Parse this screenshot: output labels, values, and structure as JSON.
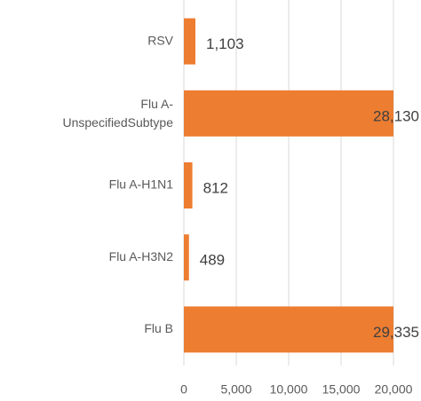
{
  "chart_data": {
    "type": "hbar",
    "categories": [
      "RSV",
      "Flu A-UnspecifiedSubtype",
      "Flu A-H1N1",
      "Flu A-H3N2",
      "Flu B"
    ],
    "values": [
      1103,
      28130,
      812,
      489,
      29335
    ],
    "value_labels": [
      "1,103",
      "28,130",
      "812",
      "489",
      "29,335"
    ],
    "color": "#ed7d31",
    "xlim": [
      0,
      20000
    ],
    "xticks": [
      0,
      {
        "value": 5000,
        "label": "5,000"
      },
      {
        "value": 10000,
        "label": "10,000"
      },
      {
        "value": 15000,
        "label": "15,000"
      },
      {
        "value": 20000,
        "label": "20,000"
      }
    ],
    "grid": true
  }
}
